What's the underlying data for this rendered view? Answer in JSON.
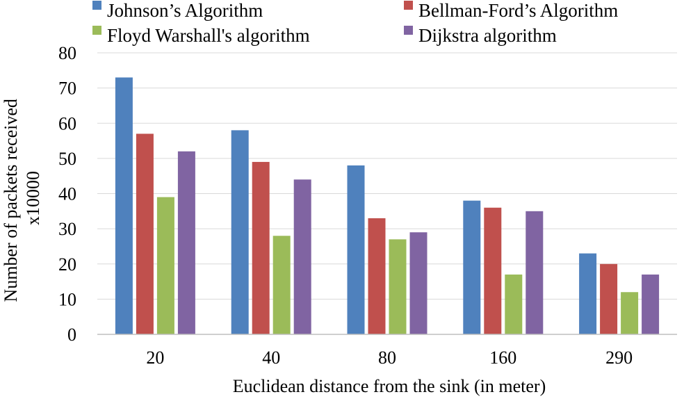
{
  "chart_data": {
    "type": "bar",
    "title": "",
    "xlabel": "Euclidean distance from the sink (in meter)",
    "ylabel_lines": [
      "Number of packets received",
      "x10000"
    ],
    "ylim": [
      0,
      80
    ],
    "yticks": [
      0,
      10,
      20,
      30,
      40,
      50,
      60,
      70,
      80
    ],
    "grid": true,
    "legend_position": "top",
    "categories": [
      "20",
      "40",
      "80",
      "160",
      "290"
    ],
    "series": [
      {
        "name": "Johnson’s Algorithm",
        "color": "#4F81BD",
        "values": [
          73,
          58,
          48,
          38,
          23
        ]
      },
      {
        "name": "Bellman-Ford’s Algorithm",
        "color": "#C0504D",
        "values": [
          57,
          49,
          33,
          36,
          20
        ]
      },
      {
        "name": "Floyd Warshall's algorithm",
        "color": "#9BBB59",
        "values": [
          39,
          28,
          27,
          17,
          12
        ]
      },
      {
        "name": "Dijkstra algorithm",
        "color": "#8064A2",
        "values": [
          52,
          44,
          29,
          35,
          17
        ]
      }
    ]
  }
}
